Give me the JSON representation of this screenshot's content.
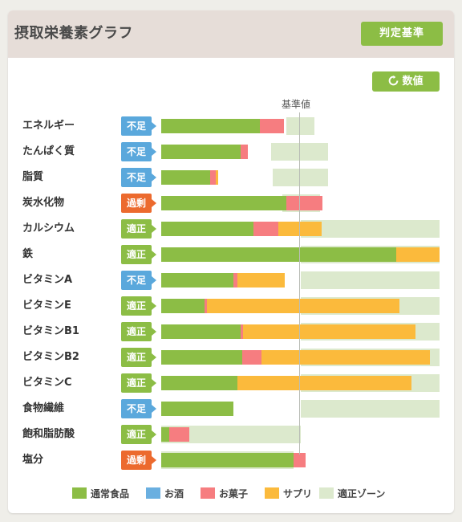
{
  "header": {
    "title": "摂取栄養素グラフ",
    "judge_button": "判定基準"
  },
  "toolbar": {
    "values_button": "数値",
    "values_icon": "refresh-icon"
  },
  "chart": {
    "baseline_label": "基準値"
  },
  "colors": {
    "food": "#8cbd45",
    "alcohol": "#6aafe0",
    "snacks": "#f67d80",
    "supplement": "#fbba3c",
    "zone": "#dce9cd",
    "status_low": "#5aa8dc",
    "status_ok": "#8cbd45",
    "status_high": "#ec6a2e"
  },
  "legend": [
    {
      "key": "food",
      "label": "通常食品"
    },
    {
      "key": "alcohol",
      "label": "お酒"
    },
    {
      "key": "snacks",
      "label": "お菓子"
    },
    {
      "key": "supplement",
      "label": "サプリ"
    },
    {
      "key": "zone",
      "label": "適正ゾーン"
    }
  ],
  "chart_data": {
    "type": "bar",
    "orientation": "horizontal",
    "stacked": true,
    "unit": "% of baseline",
    "baseline": 100,
    "xlim": [
      0,
      200
    ],
    "categories": [
      "エネルギー",
      "たんぱく質",
      "脂質",
      "炭水化物",
      "カルシウム",
      "鉄",
      "ビタミンA",
      "ビタミンE",
      "ビタミンB1",
      "ビタミンB2",
      "ビタミンC",
      "食物繊維",
      "飽和脂肪酸",
      "塩分"
    ],
    "status": [
      "不足",
      "不足",
      "不足",
      "過剰",
      "適正",
      "適正",
      "不足",
      "適正",
      "適正",
      "適正",
      "適正",
      "不足",
      "適正",
      "過剰"
    ],
    "series": [
      {
        "name": "通常食品",
        "key": "food",
        "values": [
          71,
          57,
          35,
          90,
          66,
          169,
          52,
          31,
          57,
          58,
          55,
          52,
          6,
          95
        ]
      },
      {
        "name": "お酒",
        "key": "alcohol",
        "values": [
          0,
          0,
          0,
          0,
          0,
          0,
          0,
          0,
          0,
          0,
          0,
          0,
          0,
          0
        ]
      },
      {
        "name": "お菓子",
        "key": "snacks",
        "values": [
          17,
          5,
          4,
          26,
          18,
          0,
          3,
          2,
          2,
          14,
          0,
          0,
          14,
          9
        ]
      },
      {
        "name": "サプリ",
        "key": "supplement",
        "values": [
          0,
          0,
          2,
          0,
          31,
          31,
          34,
          138,
          124,
          121,
          125,
          0,
          0,
          0
        ]
      }
    ],
    "zones": [
      [
        90,
        110
      ],
      [
        79,
        120
      ],
      [
        80,
        120
      ],
      [
        87,
        114
      ],
      [
        100,
        200
      ],
      [
        100,
        200
      ],
      [
        100,
        200
      ],
      [
        100,
        200
      ],
      [
        100,
        200
      ],
      [
        100,
        200
      ],
      [
        100,
        200
      ],
      [
        100,
        200
      ],
      [
        0,
        100
      ],
      [
        0,
        95
      ]
    ]
  }
}
